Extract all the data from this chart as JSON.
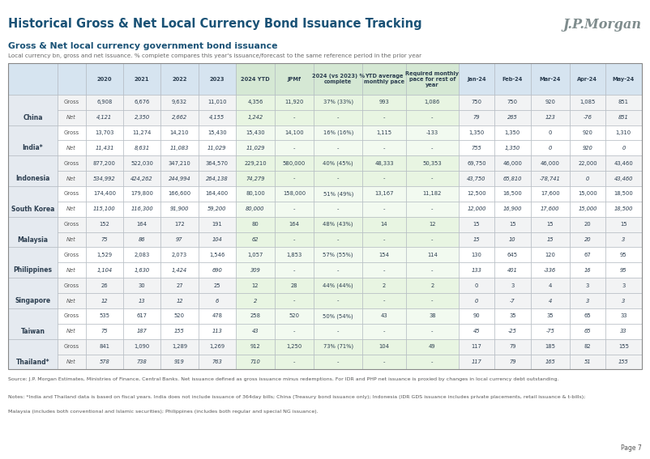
{
  "title": "Historical Gross & Net Local Currency Bond Issuance Tracking",
  "subtitle": "Gross & Net local currency government bond issuance",
  "subtitle2": "Local currency bn, gross and net issuance. % complete compares this year's issuance/forecast to the same reference period in the prior year",
  "jpmorgan_logo": "J.P.Morgan",
  "page": "Page 7",
  "source": "Source: J.P. Morgan Estimates, Ministries of Finance, Central Banks. Net issuance defined as gross issuance minus redemptions. For IDR and PHP net issuance is proxied by changes in local currency debt outstanding.",
  "notes": "Notes: *India and Thailand data is based on fiscal years. India does not include issuance of 364day bills; China (Treasury bond issuance only); Indonesia (IDR GDS issuance includes private placements, retail issuance & t-bills);",
  "notes2": "Malaysia (includes both conventional and Islamic securities); Philippines (includes both regular and special NG issuance).",
  "headers": [
    "",
    "",
    "2020",
    "2021",
    "2022",
    "2023",
    "2024 YTD",
    "JPMf",
    "2024 (vs 2023) %\ncomplete",
    "YTD average\nmonthly pace",
    "Required monthly\npace for rest of\nyear",
    "Jan-24",
    "Feb-24",
    "Mar-24",
    "Apr-24",
    "May-24"
  ],
  "rows": [
    {
      "country": "China",
      "type": "Gross",
      "italic": false,
      "vals": [
        "6,908",
        "6,676",
        "9,632",
        "11,010",
        "4,356",
        "11,920",
        "37% (33%)",
        "993",
        "1,086",
        "750",
        "750",
        "920",
        "1,085",
        "851"
      ]
    },
    {
      "country": "",
      "type": "Net",
      "italic": true,
      "vals": [
        "4,121",
        "2,350",
        "2,662",
        "4,155",
        "1,242",
        "-",
        "-",
        "-",
        "-",
        "79",
        "265",
        "123",
        "-76",
        "851"
      ]
    },
    {
      "country": "India*",
      "type": "Gross",
      "italic": false,
      "vals": [
        "13,703",
        "11,274",
        "14,210",
        "15,430",
        "15,430",
        "14,100",
        "16% (16%)",
        "1,115",
        "-133",
        "1,350",
        "1,350",
        "0",
        "920",
        "1,310"
      ]
    },
    {
      "country": "",
      "type": "Net",
      "italic": true,
      "vals": [
        "11,431",
        "8,631",
        "11,083",
        "11,029",
        "11,029",
        "-",
        "-",
        "-",
        "-",
        "755",
        "1,350",
        "0",
        "920",
        "0"
      ]
    },
    {
      "country": "Indonesia",
      "type": "Gross",
      "italic": false,
      "vals": [
        "877,200",
        "522,030",
        "347,210",
        "364,570",
        "229,210",
        "580,000",
        "40% (45%)",
        "48,333",
        "50,353",
        "69,750",
        "46,000",
        "46,000",
        "22,000",
        "43,460"
      ]
    },
    {
      "country": "",
      "type": "Net",
      "italic": true,
      "vals": [
        "534,992",
        "424,262",
        "244,994",
        "264,138",
        "74,279",
        "-",
        "-",
        "-",
        "-",
        "43,750",
        "65,810",
        "-78,741",
        "0",
        "43,460"
      ]
    },
    {
      "country": "South Korea",
      "type": "Gross",
      "italic": false,
      "vals": [
        "174,400",
        "179,800",
        "166,600",
        "164,400",
        "80,100",
        "158,000",
        "51% (49%)",
        "13,167",
        "11,182",
        "12,500",
        "16,500",
        "17,600",
        "15,000",
        "18,500"
      ]
    },
    {
      "country": "",
      "type": "Net",
      "italic": true,
      "vals": [
        "115,100",
        "116,300",
        "91,900",
        "59,200",
        "80,000",
        "-",
        "-",
        "-",
        "-",
        "12,000",
        "16,900",
        "17,600",
        "15,000",
        "18,500"
      ]
    },
    {
      "country": "Malaysia",
      "type": "Gross",
      "italic": false,
      "vals": [
        "152",
        "164",
        "172",
        "191",
        "80",
        "164",
        "48% (43%)",
        "14",
        "12",
        "15",
        "15",
        "15",
        "20",
        "15"
      ]
    },
    {
      "country": "",
      "type": "Net",
      "italic": true,
      "vals": [
        "75",
        "86",
        "97",
        "104",
        "62",
        "-",
        "-",
        "-",
        "-",
        "15",
        "10",
        "15",
        "20",
        "3"
      ]
    },
    {
      "country": "Philippines",
      "type": "Gross",
      "italic": false,
      "vals": [
        "1,529",
        "2,083",
        "2,073",
        "1,546",
        "1,057",
        "1,853",
        "57% (55%)",
        "154",
        "114",
        "130",
        "645",
        "120",
        "67",
        "95"
      ]
    },
    {
      "country": "",
      "type": "Net",
      "italic": true,
      "vals": [
        "1,104",
        "1,630",
        "1,424",
        "690",
        "309",
        "-",
        "-",
        "-",
        "-",
        "133",
        "401",
        "-336",
        "16",
        "95"
      ]
    },
    {
      "country": "Singapore",
      "type": "Gross",
      "italic": false,
      "vals": [
        "26",
        "30",
        "27",
        "25",
        "12",
        "28",
        "44% (44%)",
        "2",
        "2",
        "0",
        "3",
        "4",
        "3",
        "3"
      ]
    },
    {
      "country": "",
      "type": "Net",
      "italic": true,
      "vals": [
        "12",
        "13",
        "12",
        "6",
        "2",
        "-",
        "-",
        "-",
        "-",
        "0",
        "-7",
        "4",
        "3",
        "3"
      ]
    },
    {
      "country": "Taiwan",
      "type": "Gross",
      "italic": false,
      "vals": [
        "535",
        "617",
        "520",
        "478",
        "258",
        "520",
        "50% (54%)",
        "43",
        "38",
        "90",
        "35",
        "35",
        "65",
        "33"
      ]
    },
    {
      "country": "",
      "type": "Net",
      "italic": true,
      "vals": [
        "75",
        "187",
        "155",
        "113",
        "43",
        "-",
        "-",
        "-",
        "-",
        "45",
        "-25",
        "-75",
        "65",
        "33"
      ]
    },
    {
      "country": "Thailand*",
      "type": "Gross",
      "italic": false,
      "vals": [
        "841",
        "1,090",
        "1,289",
        "1,269",
        "912",
        "1,250",
        "73% (71%)",
        "104",
        "49",
        "117",
        "79",
        "185",
        "82",
        "155"
      ]
    },
    {
      "country": "",
      "type": "Net",
      "italic": true,
      "vals": [
        "578",
        "738",
        "919",
        "763",
        "710",
        "-",
        "-",
        "-",
        "-",
        "117",
        "79",
        "165",
        "51",
        "155"
      ]
    }
  ],
  "col_widths_rel": [
    6.5,
    3.8,
    5.0,
    5.0,
    5.0,
    5.0,
    5.2,
    5.2,
    6.5,
    5.8,
    7.0,
    4.8,
    4.8,
    5.2,
    4.8,
    4.8
  ],
  "title_color": "#1a5276",
  "subtitle_color": "#1a5276",
  "header_blue": "#d6e4f0",
  "header_green": "#d5e8d4",
  "cell_blue_odd": "#eaf2f8",
  "cell_blue_even": "#f8fbfd",
  "cell_green_odd": "#e8f5e2",
  "cell_green_even": "#f2faf0",
  "cell_white_odd": "#f2f3f4",
  "cell_white_even": "#ffffff",
  "country_bg": "#e5eaf0",
  "border_color": "#adb5bd",
  "text_color": "#2c3e50",
  "note_color": "#555555"
}
